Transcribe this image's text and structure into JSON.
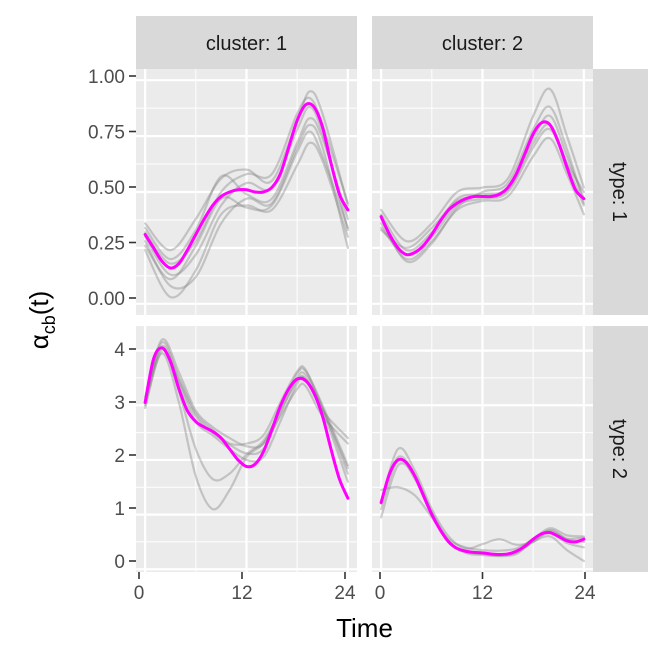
{
  "chart_data": {
    "type": "line",
    "title": "",
    "xlabel": "Time",
    "ylabel_main": "α",
    "ylabel_sub": "cb",
    "ylabel_tail": "(t)",
    "x_ticks": [
      0,
      12,
      24
    ],
    "x_tick_labels": [
      "0",
      "12",
      "24"
    ],
    "xlim": [
      0,
      24
    ],
    "col_strips": [
      "cluster: 1",
      "cluster: 2"
    ],
    "row_strips": [
      "type: 1",
      "type: 2"
    ],
    "grid": true,
    "colors": {
      "mean": "#ff00ff",
      "replicates": "#808080",
      "panel_bg": "#ebebeb",
      "strip_bg": "#d9d9d9",
      "grid": "#ffffff"
    },
    "rows": [
      {
        "ylim": [
          -0.05,
          1.05
        ],
        "y_ticks": [
          0,
          0.25,
          0.5,
          0.75,
          1
        ],
        "y_tick_labels": [
          "0.00",
          "0.25",
          "0.50",
          "0.75",
          "1.00"
        ]
      },
      {
        "ylim": [
          -0.05,
          4.45
        ],
        "y_ticks": [
          0,
          1,
          2,
          3,
          4
        ],
        "y_tick_labels": [
          "0",
          "1",
          "2",
          "3",
          "4"
        ]
      }
    ],
    "panels": [
      {
        "cluster": "1",
        "type": "1",
        "row": 0,
        "col": 0,
        "mean": {
          "name": "mean",
          "x": [
            0,
            1,
            2,
            3,
            4,
            5,
            6,
            7,
            8,
            9,
            10,
            11,
            12,
            13,
            14,
            15,
            16,
            17,
            18,
            19,
            20,
            21,
            22,
            23,
            24
          ],
          "y": [
            0.31,
            0.25,
            0.19,
            0.16,
            0.18,
            0.24,
            0.31,
            0.38,
            0.44,
            0.48,
            0.5,
            0.51,
            0.51,
            0.5,
            0.5,
            0.52,
            0.58,
            0.7,
            0.82,
            0.89,
            0.88,
            0.79,
            0.63,
            0.49,
            0.42
          ]
        },
        "replicates": [
          {
            "x": [
              0,
              3,
              6,
              9,
              12,
              15,
              18,
              19.5,
              21,
              24
            ],
            "y": [
              0.36,
              0.24,
              0.38,
              0.56,
              0.6,
              0.55,
              0.82,
              0.95,
              0.85,
              0.44
            ]
          },
          {
            "x": [
              0,
              3,
              6,
              9,
              12,
              15,
              18,
              19.5,
              21,
              24
            ],
            "y": [
              0.28,
              0.08,
              0.12,
              0.36,
              0.47,
              0.45,
              0.7,
              0.8,
              0.7,
              0.25
            ]
          },
          {
            "x": [
              0,
              3,
              6,
              9,
              12,
              15,
              18,
              19.5,
              21,
              24
            ],
            "y": [
              0.3,
              0.13,
              0.22,
              0.44,
              0.54,
              0.52,
              0.78,
              0.88,
              0.76,
              0.33
            ]
          },
          {
            "x": [
              0,
              3,
              6,
              9,
              12,
              15,
              18,
              19.5,
              21,
              24
            ],
            "y": [
              0.34,
              0.2,
              0.33,
              0.57,
              0.49,
              0.47,
              0.72,
              0.83,
              0.74,
              0.38
            ]
          },
          {
            "x": [
              0,
              3,
              6,
              9,
              12,
              15,
              18,
              19.5,
              21,
              24
            ],
            "y": [
              0.24,
              0.03,
              0.15,
              0.4,
              0.44,
              0.42,
              0.62,
              0.72,
              0.64,
              0.3
            ]
          },
          {
            "x": [
              0,
              3,
              6,
              9,
              12,
              15,
              18,
              19.5,
              21,
              24
            ],
            "y": [
              0.32,
              0.18,
              0.28,
              0.5,
              0.58,
              0.58,
              0.85,
              0.92,
              0.8,
              0.45
            ]
          },
          {
            "x": [
              0,
              3,
              6,
              9,
              12,
              15,
              18,
              19.5,
              21,
              24
            ],
            "y": [
              0.26,
              0.11,
              0.26,
              0.47,
              0.43,
              0.44,
              0.68,
              0.77,
              0.66,
              0.34
            ]
          }
        ]
      },
      {
        "cluster": "2",
        "type": "1",
        "row": 0,
        "col": 1,
        "mean": {
          "name": "mean",
          "x": [
            0,
            1,
            2,
            3,
            4,
            5,
            6,
            7,
            8,
            9,
            10,
            11,
            12,
            13,
            14,
            15,
            16,
            17,
            18,
            19,
            20,
            21,
            22,
            23,
            24
          ],
          "y": [
            0.39,
            0.31,
            0.25,
            0.22,
            0.23,
            0.26,
            0.31,
            0.37,
            0.42,
            0.45,
            0.47,
            0.48,
            0.48,
            0.48,
            0.49,
            0.52,
            0.58,
            0.67,
            0.76,
            0.81,
            0.8,
            0.72,
            0.61,
            0.51,
            0.47
          ]
        },
        "replicates": [
          {
            "x": [
              0,
              3,
              6,
              9,
              12,
              15,
              18,
              20,
              22,
              24
            ],
            "y": [
              0.42,
              0.28,
              0.36,
              0.5,
              0.52,
              0.56,
              0.84,
              0.96,
              0.75,
              0.52
            ]
          },
          {
            "x": [
              0,
              3,
              6,
              9,
              12,
              15,
              18,
              20,
              22,
              24
            ],
            "y": [
              0.36,
              0.2,
              0.28,
              0.42,
              0.46,
              0.48,
              0.66,
              0.74,
              0.58,
              0.4
            ]
          },
          {
            "x": [
              0,
              3,
              6,
              9,
              12,
              15,
              18,
              20,
              22,
              24
            ],
            "y": [
              0.4,
              0.24,
              0.32,
              0.47,
              0.49,
              0.52,
              0.74,
              0.84,
              0.66,
              0.47
            ]
          },
          {
            "x": [
              0,
              3,
              6,
              9,
              12,
              15,
              18,
              20,
              22,
              24
            ],
            "y": [
              0.34,
              0.22,
              0.3,
              0.44,
              0.47,
              0.5,
              0.7,
              0.78,
              0.62,
              0.44
            ]
          },
          {
            "x": [
              0,
              3,
              6,
              9,
              12,
              15,
              18,
              20,
              22,
              24
            ],
            "y": [
              0.38,
              0.19,
              0.27,
              0.43,
              0.5,
              0.54,
              0.78,
              0.88,
              0.69,
              0.45
            ]
          },
          {
            "x": [
              0,
              3,
              6,
              9,
              12,
              15,
              18,
              20,
              22,
              24
            ],
            "y": [
              0.33,
              0.25,
              0.34,
              0.46,
              0.48,
              0.51,
              0.72,
              0.8,
              0.63,
              0.5
            ]
          }
        ]
      },
      {
        "cluster": "1",
        "type": "2",
        "row": 1,
        "col": 0,
        "mean": {
          "name": "mean",
          "x": [
            0,
            1,
            2,
            3,
            4,
            5,
            6,
            7,
            8,
            9,
            10,
            11,
            12,
            13,
            14,
            15,
            16,
            17,
            18,
            19,
            20,
            21,
            22,
            23,
            24
          ],
          "y": [
            3.05,
            3.85,
            4.05,
            3.8,
            3.3,
            2.9,
            2.7,
            2.6,
            2.52,
            2.4,
            2.2,
            2.0,
            1.88,
            1.92,
            2.15,
            2.55,
            2.98,
            3.3,
            3.48,
            3.45,
            3.22,
            2.8,
            2.2,
            1.65,
            1.3
          ]
        },
        "replicates": [
          {
            "x": [
              0,
              2,
              4,
              6,
              8,
              10,
              12,
              14,
              16,
              18,
              19,
              21,
              24
            ],
            "y": [
              3.1,
              4.15,
              3.5,
              2.85,
              2.55,
              2.3,
              2.3,
              2.45,
              3.05,
              3.62,
              3.65,
              2.95,
              1.85
            ]
          },
          {
            "x": [
              0,
              2,
              4,
              6,
              8,
              10,
              12,
              14,
              16,
              18,
              19,
              21,
              24
            ],
            "y": [
              3.0,
              3.95,
              3.05,
              1.7,
              1.1,
              1.45,
              2.05,
              2.3,
              2.8,
              3.3,
              3.35,
              2.8,
              2.3
            ]
          },
          {
            "x": [
              0,
              2,
              4,
              6,
              8,
              10,
              12,
              14,
              16,
              18,
              19,
              21,
              24
            ],
            "y": [
              3.05,
              4.05,
              3.25,
              2.2,
              1.65,
              1.75,
              2.1,
              2.35,
              2.9,
              3.45,
              3.48,
              2.9,
              2.4
            ]
          },
          {
            "x": [
              0,
              2,
              4,
              6,
              8,
              10,
              12,
              14,
              16,
              18,
              19,
              21,
              24
            ],
            "y": [
              3.15,
              4.2,
              3.6,
              2.9,
              2.6,
              2.4,
              2.25,
              2.3,
              2.95,
              3.58,
              3.62,
              3.0,
              1.9
            ]
          },
          {
            "x": [
              0,
              2,
              4,
              6,
              8,
              10,
              12,
              14,
              16,
              18,
              19,
              21,
              24
            ],
            "y": [
              2.95,
              4.0,
              3.4,
              2.7,
              2.45,
              2.2,
              2.0,
              2.05,
              2.7,
              3.4,
              3.48,
              2.9,
              1.6
            ]
          },
          {
            "x": [
              0,
              2,
              4,
              6,
              8,
              10,
              12,
              14,
              16,
              18,
              19,
              21,
              24
            ],
            "y": [
              3.08,
              4.08,
              3.45,
              2.8,
              2.5,
              2.28,
              2.12,
              2.2,
              2.85,
              3.5,
              3.55,
              2.95,
              1.75
            ]
          }
        ]
      },
      {
        "cluster": "2",
        "type": "2",
        "row": 1,
        "col": 1,
        "mean": {
          "name": "mean",
          "x": [
            0,
            1,
            2,
            3,
            4,
            5,
            6,
            7,
            8,
            9,
            10,
            11,
            12,
            13,
            14,
            15,
            16,
            17,
            18,
            19,
            20,
            21,
            22,
            23,
            24
          ],
          "y": [
            1.22,
            1.75,
            2.0,
            1.95,
            1.7,
            1.35,
            1.0,
            0.72,
            0.5,
            0.38,
            0.33,
            0.31,
            0.3,
            0.28,
            0.27,
            0.28,
            0.33,
            0.42,
            0.55,
            0.65,
            0.67,
            0.6,
            0.52,
            0.5,
            0.55
          ]
        },
        "replicates": [
          {
            "x": [
              0,
              2,
              4,
              6,
              8,
              10,
              12,
              14,
              16,
              18,
              20,
              22,
              24
            ],
            "y": [
              1.45,
              1.5,
              1.35,
              0.95,
              0.55,
              0.4,
              0.35,
              0.34,
              0.38,
              0.55,
              0.75,
              0.62,
              0.6
            ]
          },
          {
            "x": [
              0,
              2,
              4,
              6,
              8,
              10,
              12,
              14,
              16,
              18,
              20,
              22,
              24
            ],
            "y": [
              1.2,
              2.2,
              1.8,
              1.1,
              0.6,
              0.38,
              0.46,
              0.55,
              0.45,
              0.5,
              0.72,
              0.55,
              0.5
            ]
          },
          {
            "x": [
              0,
              2,
              4,
              6,
              8,
              10,
              12,
              14,
              16,
              18,
              20,
              22,
              24
            ],
            "y": [
              1.1,
              2.0,
              1.65,
              1.0,
              0.5,
              0.32,
              0.28,
              0.25,
              0.3,
              0.5,
              0.6,
              0.35,
              0.15
            ]
          },
          {
            "x": [
              0,
              2,
              4,
              6,
              8,
              10,
              12,
              14,
              16,
              18,
              20,
              22,
              24
            ],
            "y": [
              0.95,
              1.9,
              1.7,
              1.05,
              0.52,
              0.3,
              0.26,
              0.24,
              0.28,
              0.52,
              0.66,
              0.48,
              0.4
            ]
          },
          {
            "x": [
              0,
              2,
              4,
              6,
              8,
              10,
              12,
              14,
              16,
              18,
              20,
              22,
              24
            ],
            "y": [
              1.25,
              2.05,
              1.72,
              1.02,
              0.5,
              0.34,
              0.3,
              0.27,
              0.32,
              0.56,
              0.7,
              0.56,
              0.58
            ]
          }
        ]
      }
    ]
  }
}
